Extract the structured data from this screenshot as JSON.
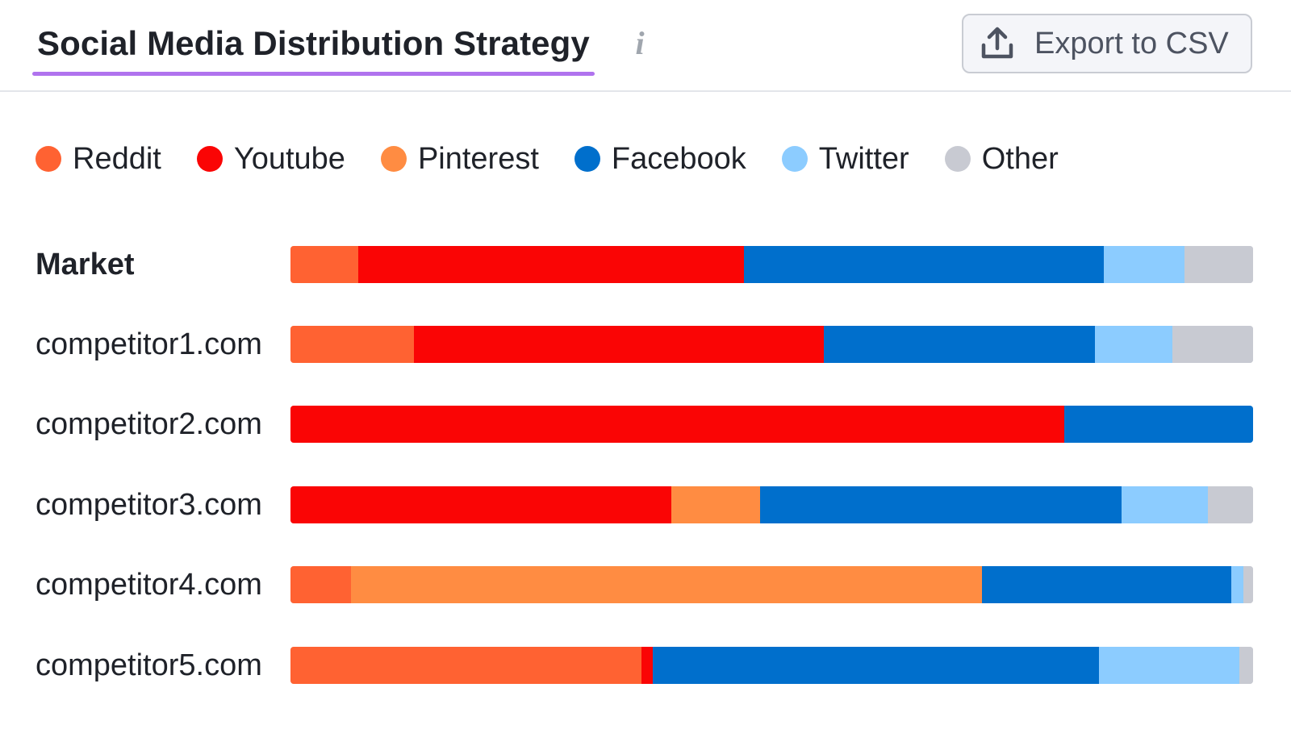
{
  "header": {
    "title": "Social Media Distribution Strategy",
    "info_icon": "info-icon",
    "export_label": "Export to CSV",
    "export_icon": "upload-icon"
  },
  "colors": {
    "Reddit": "#ff6232",
    "Youtube": "#fa0505",
    "Pinterest": "#ff8c42",
    "Facebook": "#006fcc",
    "Twitter": "#8cccff",
    "Other": "#c8cad2",
    "title_underline": "#b073ee"
  },
  "legend": [
    {
      "label": "Reddit"
    },
    {
      "label": "Youtube"
    },
    {
      "label": "Pinterest"
    },
    {
      "label": "Facebook"
    },
    {
      "label": "Twitter"
    },
    {
      "label": "Other"
    }
  ],
  "chart_data": {
    "type": "bar",
    "orientation": "horizontal",
    "stacked": true,
    "normalized_percent": true,
    "legend_position": "top-left",
    "categories": [
      "Market",
      "competitor1.com",
      "competitor2.com",
      "competitor3.com",
      "competitor4.com",
      "competitor5.com"
    ],
    "series": [
      {
        "name": "Reddit",
        "values": [
          7,
          12.8,
          0,
          0,
          6.3,
          36.5
        ]
      },
      {
        "name": "Youtube",
        "values": [
          40.1,
          42.6,
          80.4,
          39.6,
          0,
          1.1
        ]
      },
      {
        "name": "Pinterest",
        "values": [
          0,
          0,
          0,
          9.2,
          65.5,
          0
        ]
      },
      {
        "name": "Facebook",
        "values": [
          37.4,
          28.2,
          19.6,
          37.5,
          25.9,
          46.4
        ]
      },
      {
        "name": "Twitter",
        "values": [
          8.4,
          8,
          0,
          9,
          1.3,
          14.6
        ]
      },
      {
        "name": "Other",
        "values": [
          7.1,
          8.4,
          0,
          4.7,
          1,
          1.4
        ]
      }
    ]
  }
}
